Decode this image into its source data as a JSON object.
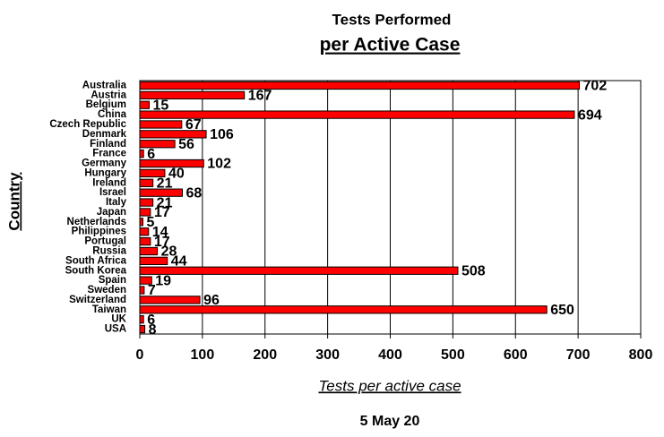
{
  "chart_data": {
    "type": "hbar",
    "title": "Tests Performed",
    "subtitle": "per Active Case",
    "x_label": "Tests per active case",
    "y_label": "Country",
    "footer": "5 May 20",
    "categories": [
      "Australia",
      "Austria",
      "Belgium",
      "China",
      "Czech Republic",
      "Denmark",
      "Finland",
      "France",
      "Germany",
      "Hungary",
      "Ireland",
      "Israel",
      "Italy",
      "Japan",
      "Netherlands",
      "Philippines",
      "Portugal",
      "Russia",
      "South Africa",
      "South Korea",
      "Spain",
      "Sweden",
      "Switzerland",
      "Taiwan",
      "UK",
      "USA"
    ],
    "values": [
      702,
      167,
      15,
      694,
      67,
      106,
      56,
      6,
      102,
      40,
      21,
      68,
      21,
      17,
      5,
      14,
      17,
      28,
      44,
      508,
      19,
      7,
      96,
      650,
      6,
      8
    ],
    "color": "#ff0000",
    "xlim": [
      0,
      800
    ],
    "xticks": [
      0,
      100,
      200,
      300,
      400,
      500,
      600,
      700,
      800
    ],
    "grid": true
  }
}
